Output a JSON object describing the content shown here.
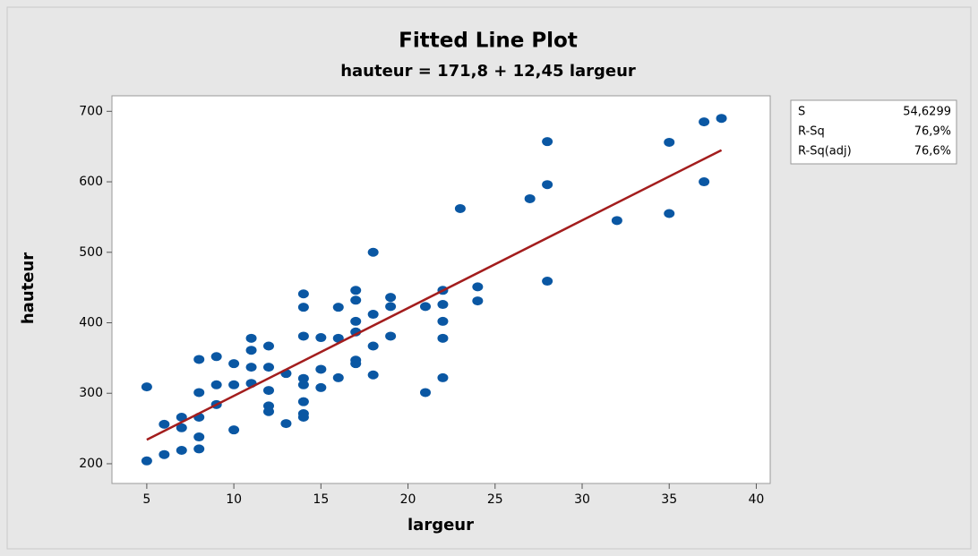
{
  "chart_data": {
    "type": "scatter",
    "title": "Fitted Line Plot",
    "subtitle": "hauteur = 171,8 + 12,45 largeur",
    "xlabel": "largeur",
    "ylabel": "hauteur",
    "color": "#0a57a3",
    "x": [
      5,
      5,
      6,
      6,
      7,
      7,
      7,
      8,
      8,
      8,
      8,
      8,
      9,
      9,
      9,
      10,
      10,
      10,
      11,
      11,
      11,
      11,
      12,
      12,
      12,
      12,
      12,
      13,
      13,
      14,
      14,
      14,
      14,
      14,
      14,
      14,
      14,
      15,
      15,
      15,
      16,
      16,
      16,
      17,
      17,
      17,
      17,
      17,
      17,
      18,
      18,
      18,
      18,
      19,
      19,
      19,
      21,
      21,
      22,
      22,
      22,
      22,
      22,
      23,
      24,
      24,
      27,
      28,
      28,
      28,
      32,
      35,
      35,
      37,
      37,
      38
    ],
    "values": [
      309,
      204,
      256,
      213,
      266,
      251,
      219,
      348,
      301,
      266,
      238,
      221,
      352,
      312,
      284,
      342,
      312,
      248,
      378,
      361,
      337,
      314,
      367,
      337,
      304,
      282,
      274,
      328,
      257,
      441,
      422,
      381,
      321,
      312,
      288,
      271,
      266,
      379,
      334,
      308,
      422,
      378,
      322,
      446,
      432,
      402,
      387,
      347,
      342,
      500,
      412,
      367,
      326,
      436,
      423,
      381,
      423,
      301,
      446,
      426,
      402,
      378,
      322,
      562,
      451,
      431,
      576,
      657,
      596,
      459,
      545,
      656,
      555,
      685,
      600,
      690
    ],
    "fit_line": {
      "x": [
        5,
        38
      ],
      "values": [
        234.05,
        644.9
      ],
      "color": "#a31d1d"
    },
    "stats": [
      {
        "label": "S",
        "value": "54,6299"
      },
      {
        "label": "R-Sq",
        "value": "76,9%"
      },
      {
        "label": "R-Sq(adj)",
        "value": "76,6%"
      }
    ],
    "xlim": [
      3,
      40.8
    ],
    "ylim": [
      172,
      722
    ],
    "xticks": [
      5,
      10,
      15,
      20,
      25,
      30,
      35,
      40
    ],
    "yticks": [
      200,
      300,
      400,
      500,
      600,
      700
    ],
    "grid": false
  }
}
